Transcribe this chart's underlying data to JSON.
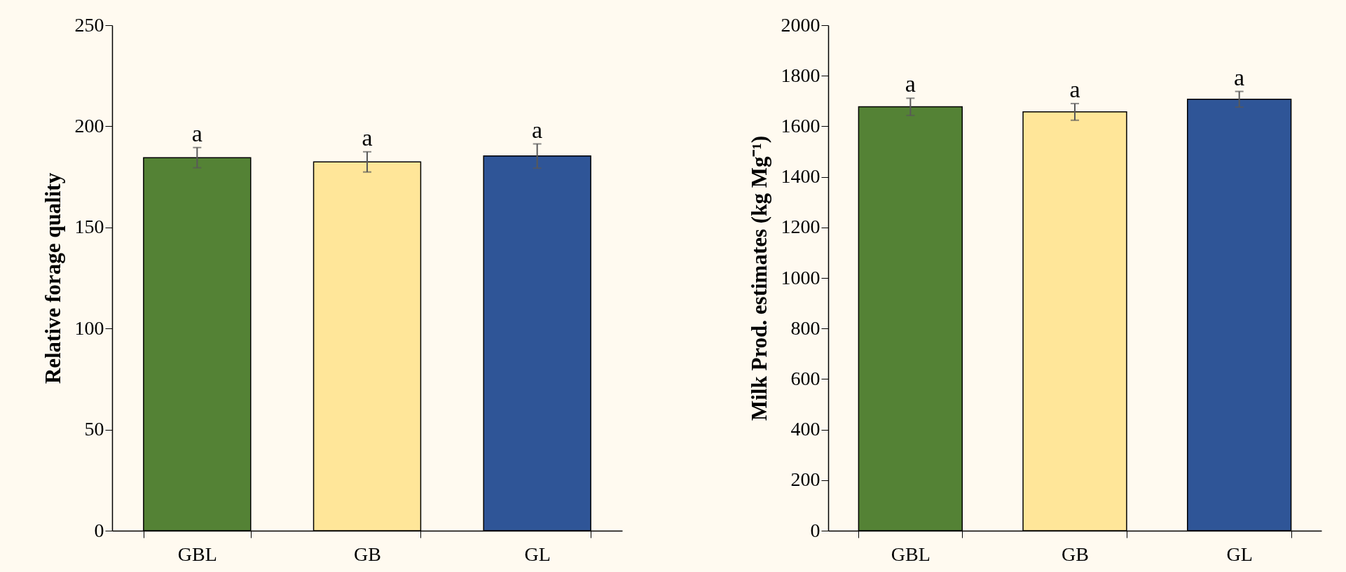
{
  "chart_data": [
    {
      "type": "bar",
      "ylabel": "Relative forage quality",
      "categories": [
        "GBL",
        "GB",
        "GL"
      ],
      "values": [
        184.5,
        182.4,
        185.3
      ],
      "errors": [
        5,
        5,
        6
      ],
      "colors": [
        "#548235",
        "#ffe699",
        "#2f5597"
      ],
      "ylim": [
        0,
        250
      ],
      "yticks": [
        0,
        50,
        100,
        150,
        200,
        250
      ],
      "annotations": [
        {
          "text": "a",
          "x": "GBL",
          "y": 189.5
        },
        {
          "text": "a",
          "x": "GB",
          "y": 187.4
        },
        {
          "text": "a",
          "x": "GL",
          "y": 191.3
        }
      ]
    },
    {
      "type": "bar",
      "ylabel": "Milk Prod. estimates (kg Mg⁻¹)",
      "categories": [
        "GBL",
        "GB",
        "GL"
      ],
      "values": [
        1677,
        1657,
        1707
      ],
      "errors": [
        34,
        33,
        31
      ],
      "colors": [
        "#548235",
        "#ffe699",
        "#2f5597"
      ],
      "ylim": [
        0,
        2000
      ],
      "yticks": [
        0,
        200,
        400,
        600,
        800,
        1000,
        1200,
        1400,
        1600,
        1800,
        2000
      ],
      "annotations": [
        {
          "text": "a",
          "x": "GBL",
          "y": 1711
        },
        {
          "text": "a",
          "x": "GB",
          "y": 1690
        },
        {
          "text": "a",
          "x": "GL",
          "y": 1738
        }
      ]
    }
  ]
}
